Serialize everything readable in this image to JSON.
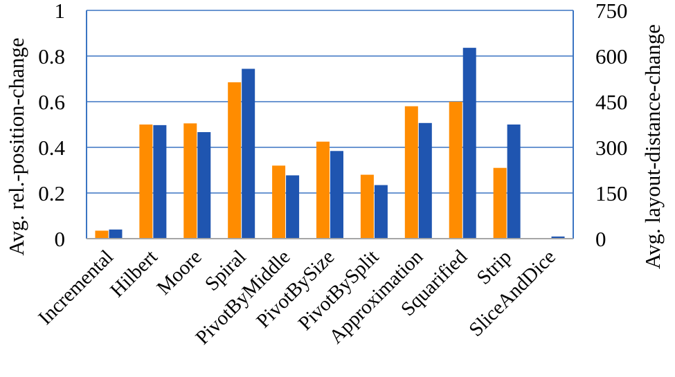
{
  "chart_data": {
    "type": "bar",
    "categories": [
      "Incremental",
      "Hilbert",
      "Moore",
      "Spiral",
      "PivotByMiddle",
      "PivotBySize",
      "PivotBySplit",
      "Approximation",
      "Squarified",
      "Strip",
      "SliceAndDice"
    ],
    "series": [
      {
        "values": [
          0.035,
          0.5,
          0.505,
          0.685,
          0.32,
          0.425,
          0.28,
          0.58,
          0.6,
          0.31,
          0.0
        ],
        "color": "#FF8C00",
        "axis": "left"
      },
      {
        "values": [
          30,
          373,
          350,
          558,
          208,
          288,
          176,
          380,
          627,
          375,
          7
        ],
        "color": "#1F55B0",
        "axis": "right"
      }
    ],
    "ylabel_left": "Avg. rel.-position-change",
    "ylabel_right": "Avg. layout-distance-change",
    "ylim_left": [
      0,
      1
    ],
    "ylim_right": [
      0,
      750
    ],
    "yticks_left": [
      "0",
      "0.2",
      "0.4",
      "0.6",
      "0.8",
      "1"
    ],
    "yticks_right": [
      "0",
      "150",
      "300",
      "450",
      "600",
      "750"
    ],
    "grid": true,
    "gridColor": "#3A74C2",
    "legend": "none"
  }
}
